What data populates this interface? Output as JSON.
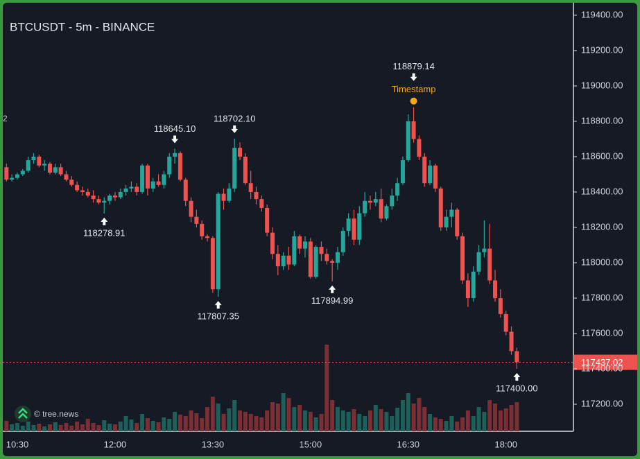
{
  "chart_data": {
    "type": "candlestick",
    "title": "BTCUSDT - 5m - BINANCE",
    "edge_text": "2",
    "watermark": "© tree.news",
    "categories": [
      null,
      null,
      "10:30",
      null,
      null,
      null,
      null,
      null,
      null,
      null,
      null,
      null,
      null,
      null,
      null,
      null,
      null,
      null,
      null,
      null,
      "12:00",
      null,
      null,
      null,
      null,
      null,
      null,
      null,
      null,
      null,
      null,
      null,
      null,
      null,
      null,
      null,
      null,
      null,
      "13:30",
      null,
      null,
      null,
      null,
      null,
      null,
      null,
      null,
      null,
      null,
      null,
      null,
      null,
      null,
      null,
      null,
      null,
      "15:00",
      null,
      null,
      null,
      null,
      null,
      null,
      null,
      null,
      null,
      null,
      null,
      null,
      null,
      null,
      null,
      null,
      null,
      "16:30",
      null,
      null,
      null,
      null,
      null,
      null,
      null,
      null,
      null,
      null,
      null,
      null,
      null,
      null,
      null,
      null,
      null,
      "18:00",
      null,
      null
    ],
    "open": [
      118540,
      118470,
      118480,
      118500,
      118520,
      118580,
      118600,
      118550,
      118560,
      118510,
      118540,
      118500,
      118470,
      118440,
      118410,
      118400,
      118380,
      118360,
      118340,
      118350,
      118380,
      118370,
      118400,
      118420,
      118430,
      118400,
      118550,
      118420,
      118460,
      118440,
      118500,
      118600,
      118620,
      118470,
      118350,
      118260,
      118220,
      118150,
      118140,
      117850,
      118390,
      118350,
      118420,
      118650,
      118600,
      118450,
      118400,
      118360,
      118310,
      118170,
      118050,
      117980,
      118040,
      117990,
      118150,
      118080,
      118120,
      117920,
      118090,
      118050,
      118010,
      118000,
      118060,
      118180,
      118250,
      118130,
      118280,
      118350,
      118340,
      118360,
      118250,
      118320,
      118380,
      118450,
      118580,
      118800,
      118700,
      118600,
      118450,
      118550,
      118420,
      118200,
      118260,
      118300,
      118150,
      117900,
      117800,
      117950,
      118060,
      118080,
      117900,
      117800,
      117710,
      117610,
      117500
    ],
    "high": [
      118560,
      118500,
      118510,
      118530,
      118600,
      118620,
      118610,
      118580,
      118570,
      118560,
      118560,
      118520,
      118490,
      118460,
      118430,
      118420,
      118410,
      118380,
      118370,
      118390,
      118400,
      118420,
      118440,
      118460,
      118450,
      118560,
      118560,
      118480,
      118500,
      118520,
      118620,
      118645.1,
      118630,
      118480,
      118370,
      118300,
      118240,
      118160,
      118150,
      118400,
      118420,
      118450,
      118702.1,
      118680,
      118620,
      118520,
      118430,
      118380,
      118330,
      118200,
      118100,
      118060,
      118090,
      118180,
      118160,
      118150,
      118140,
      118100,
      118120,
      118080,
      118020,
      118090,
      118200,
      118280,
      118300,
      118320,
      118400,
      118380,
      118400,
      118420,
      118330,
      118420,
      118480,
      118600,
      118840,
      118879.14,
      118720,
      118620,
      118580,
      118560,
      118430,
      118300,
      118340,
      118310,
      118170,
      117940,
      117980,
      118100,
      118240,
      118220,
      117960,
      117850,
      117730,
      117640,
      117520
    ],
    "low": [
      118460,
      118460,
      118470,
      118490,
      118510,
      118560,
      118540,
      118520,
      118500,
      118500,
      118490,
      118460,
      118430,
      118400,
      118380,
      118370,
      118340,
      118330,
      118278.91,
      118330,
      118350,
      118360,
      118380,
      118400,
      118380,
      118390,
      118380,
      118400,
      118430,
      118420,
      118480,
      118560,
      118460,
      118320,
      118230,
      118200,
      118130,
      118120,
      117830,
      117807.35,
      118300,
      118340,
      118400,
      118580,
      118440,
      118360,
      118330,
      118290,
      118150,
      118020,
      117930,
      117960,
      117960,
      117980,
      118050,
      118030,
      117910,
      117910,
      118010,
      117990,
      117894.99,
      117960,
      118040,
      118150,
      118100,
      118100,
      118260,
      118300,
      118320,
      118230,
      118240,
      118300,
      118350,
      118440,
      118570,
      118680,
      118580,
      118430,
      118440,
      118400,
      118180,
      118180,
      118200,
      118130,
      117880,
      117750,
      117780,
      117930,
      118030,
      117880,
      117780,
      117690,
      117590,
      117480,
      117400
    ],
    "close": [
      118470,
      118480,
      118500,
      118520,
      118580,
      118600,
      118550,
      118560,
      118510,
      118540,
      118500,
      118470,
      118440,
      118410,
      118400,
      118380,
      118360,
      118340,
      118350,
      118380,
      118370,
      118400,
      118420,
      118430,
      118400,
      118550,
      118420,
      118460,
      118440,
      118500,
      118600,
      118620,
      118470,
      118350,
      118260,
      118220,
      118150,
      118140,
      117850,
      118390,
      118350,
      118420,
      118650,
      118600,
      118450,
      118400,
      118360,
      118310,
      118170,
      118050,
      117980,
      118040,
      117990,
      118150,
      118080,
      118120,
      117920,
      118090,
      118050,
      118010,
      118000,
      118060,
      118180,
      118250,
      118130,
      118280,
      118350,
      118340,
      118360,
      118250,
      118320,
      118380,
      118450,
      118580,
      118800,
      118700,
      118600,
      118450,
      118550,
      118420,
      118200,
      118260,
      118300,
      118150,
      117900,
      117800,
      117950,
      118060,
      118080,
      117900,
      117800,
      117710,
      117610,
      117500,
      117437.02
    ],
    "volume": [
      15,
      10,
      12,
      8,
      14,
      9,
      11,
      7,
      10,
      13,
      9,
      12,
      8,
      14,
      10,
      18,
      12,
      9,
      16,
      11,
      10,
      14,
      22,
      17,
      12,
      25,
      19,
      15,
      13,
      20,
      18,
      28,
      24,
      22,
      30,
      26,
      19,
      35,
      50,
      40,
      25,
      33,
      45,
      30,
      28,
      25,
      22,
      20,
      30,
      42,
      40,
      55,
      48,
      35,
      38,
      30,
      28,
      20,
      25,
      125,
      45,
      35,
      30,
      28,
      32,
      25,
      22,
      30,
      38,
      32,
      28,
      22,
      34,
      45,
      55,
      40,
      48,
      35,
      25,
      20,
      18,
      15,
      22,
      14,
      20,
      30,
      22,
      35,
      28,
      45,
      40,
      30,
      33,
      38,
      42
    ],
    "up_color": "#26a69a",
    "down_color": "#ef5350",
    "volume_up_color": "#1d5f59",
    "volume_down_color": "#7a2f34",
    "ylim": [
      117047,
      119486
    ],
    "yticks": [
      {
        "value": 117200,
        "label": "117200.00"
      },
      {
        "value": 117400,
        "label": "117400.00"
      },
      {
        "value": 117600,
        "label": "117600.00"
      },
      {
        "value": 117800,
        "label": "117800.00"
      },
      {
        "value": 118000,
        "label": "118000.00"
      },
      {
        "value": 118200,
        "label": "118200.00"
      },
      {
        "value": 118400,
        "label": "118400.00"
      },
      {
        "value": 118600,
        "label": "118600.00"
      },
      {
        "value": 118800,
        "label": "118800.00"
      },
      {
        "value": 119000,
        "label": "119000.00"
      },
      {
        "value": 119200,
        "label": "119200.00"
      },
      {
        "value": 119400,
        "label": "119400.00"
      }
    ],
    "last_price": {
      "value": 117437.02,
      "label": "117437.02"
    },
    "annotations": [
      {
        "value": 118278.91,
        "label": "118278.91",
        "kind": "low"
      },
      {
        "value": 118645.1,
        "label": "118645.10",
        "kind": "high"
      },
      {
        "value": 117807.35,
        "label": "117807.35",
        "kind": "low"
      },
      {
        "value": 118702.1,
        "label": "118702.10",
        "kind": "high"
      },
      {
        "value": 117894.99,
        "label": "117894.99",
        "kind": "low"
      },
      {
        "value": 118879.14,
        "label": "118879.14",
        "kind": "high",
        "note": "Timestamp"
      },
      {
        "value": 117400,
        "label": "117400.00",
        "kind": "low"
      }
    ]
  }
}
